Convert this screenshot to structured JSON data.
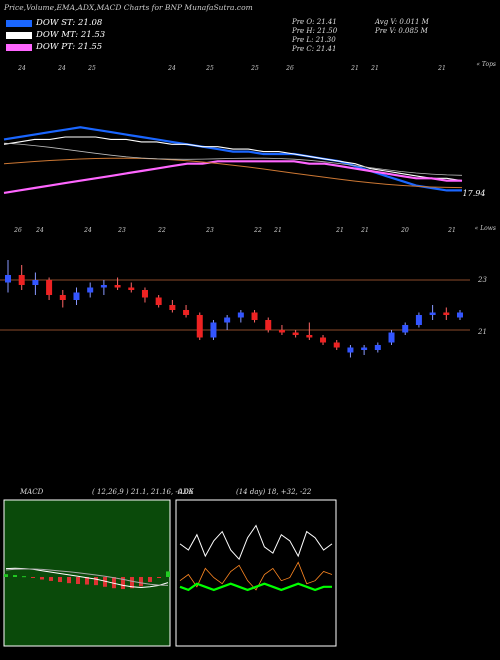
{
  "header": {
    "title": "Price,Volume,EMA,ADX,MACD Charts for BNP MunafaSutra.com",
    "legend": [
      {
        "label": "DOW ST: 21.08",
        "color": "#1a66ff"
      },
      {
        "label": "DOW MT: 21.53",
        "color": "#ffffff"
      },
      {
        "label": "DOW PT: 21.55",
        "color": "#ff66ff"
      }
    ],
    "stats_left": [
      "Pre   O: 21.41",
      "Pre   H: 21.50",
      "Pre   L: 21.30",
      "Pre   C: 21.41"
    ],
    "stats_right": [
      "Avg V: 0.011 M",
      "Pre   V: 0.085 M"
    ]
  },
  "colors": {
    "up": "#3355ff",
    "down": "#ee2222",
    "ema_st": "#1a66ff",
    "ema_pt": "#ff66ff",
    "ema_lt": "#cc7733",
    "macd_bg": "#0a4a0a",
    "adx_line": "#00ff00",
    "adx_di_minus": "#ff8822"
  },
  "chart_data": [
    {
      "type": "line",
      "title": "",
      "axis_label_top": "« Tops",
      "top_tick_labels": [
        "24",
        "24",
        "25",
        "24",
        "25",
        "25",
        "26",
        "21",
        "21",
        "21"
      ],
      "last_value_label": "17.94",
      "series": [
        {
          "name": "DOW ST",
          "values": [
            23.2,
            23.3,
            23.4,
            23.5,
            23.6,
            23.7,
            23.6,
            23.5,
            23.4,
            23.3,
            23.2,
            23.1,
            23.0,
            22.9,
            22.8,
            22.7,
            22.7,
            22.6,
            22.6,
            22.6,
            22.5,
            22.4,
            22.3,
            22.1,
            21.9,
            21.7,
            21.5,
            21.3,
            21.2,
            21.1,
            21.1
          ]
        },
        {
          "name": "DOW MT",
          "values": [
            23.0,
            23.1,
            23.2,
            23.2,
            23.3,
            23.3,
            23.3,
            23.2,
            23.2,
            23.1,
            23.1,
            23.0,
            23.0,
            22.9,
            22.9,
            22.8,
            22.8,
            22.7,
            22.7,
            22.6,
            22.5,
            22.4,
            22.3,
            22.2,
            22.0,
            21.9,
            21.8,
            21.7,
            21.6,
            21.6,
            21.5
          ]
        },
        {
          "name": "DOW PT",
          "values": [
            21.0,
            21.1,
            21.2,
            21.3,
            21.4,
            21.5,
            21.6,
            21.7,
            21.8,
            21.9,
            22.0,
            22.1,
            22.2,
            22.2,
            22.3,
            22.3,
            22.3,
            22.3,
            22.3,
            22.3,
            22.2,
            22.2,
            22.1,
            22.0,
            21.9,
            21.8,
            21.7,
            21.6,
            21.6,
            21.5,
            21.5
          ]
        }
      ]
    },
    {
      "type": "bar",
      "title": "",
      "axis_label_bottom": "« Lows",
      "tick_labels_top": [
        "26",
        "24",
        "24",
        "23",
        "22",
        "23",
        "22",
        "21",
        "21",
        "21",
        "20",
        "21"
      ],
      "y_labels": [
        "23",
        "21"
      ],
      "candles": [
        {
          "o": 22.9,
          "h": 23.8,
          "l": 22.5,
          "c": 23.2
        },
        {
          "o": 23.2,
          "h": 23.6,
          "l": 22.6,
          "c": 22.8
        },
        {
          "o": 22.8,
          "h": 23.3,
          "l": 22.4,
          "c": 23.0
        },
        {
          "o": 23.0,
          "h": 23.1,
          "l": 22.2,
          "c": 22.4
        },
        {
          "o": 22.4,
          "h": 22.6,
          "l": 21.9,
          "c": 22.2
        },
        {
          "o": 22.2,
          "h": 22.7,
          "l": 22.0,
          "c": 22.5
        },
        {
          "o": 22.5,
          "h": 22.9,
          "l": 22.3,
          "c": 22.7
        },
        {
          "o": 22.7,
          "h": 23.0,
          "l": 22.4,
          "c": 22.8
        },
        {
          "o": 22.8,
          "h": 23.1,
          "l": 22.6,
          "c": 22.7
        },
        {
          "o": 22.7,
          "h": 22.9,
          "l": 22.5,
          "c": 22.6
        },
        {
          "o": 22.6,
          "h": 22.7,
          "l": 22.1,
          "c": 22.3
        },
        {
          "o": 22.3,
          "h": 22.4,
          "l": 21.9,
          "c": 22.0
        },
        {
          "o": 22.0,
          "h": 22.2,
          "l": 21.7,
          "c": 21.8
        },
        {
          "o": 21.8,
          "h": 22.0,
          "l": 21.5,
          "c": 21.6
        },
        {
          "o": 21.6,
          "h": 21.7,
          "l": 20.6,
          "c": 20.7
        },
        {
          "o": 20.7,
          "h": 21.4,
          "l": 20.6,
          "c": 21.3
        },
        {
          "o": 21.3,
          "h": 21.6,
          "l": 21.0,
          "c": 21.5
        },
        {
          "o": 21.5,
          "h": 21.8,
          "l": 21.3,
          "c": 21.7
        },
        {
          "o": 21.7,
          "h": 21.8,
          "l": 21.3,
          "c": 21.4
        },
        {
          "o": 21.4,
          "h": 21.5,
          "l": 20.9,
          "c": 21.0
        },
        {
          "o": 21.0,
          "h": 21.2,
          "l": 20.8,
          "c": 20.9
        },
        {
          "o": 20.9,
          "h": 21.0,
          "l": 20.7,
          "c": 20.8
        },
        {
          "o": 20.8,
          "h": 21.3,
          "l": 20.6,
          "c": 20.7
        },
        {
          "o": 20.7,
          "h": 20.8,
          "l": 20.4,
          "c": 20.5
        },
        {
          "o": 20.5,
          "h": 20.6,
          "l": 20.2,
          "c": 20.3
        },
        {
          "o": 20.1,
          "h": 20.4,
          "l": 19.9,
          "c": 20.3
        },
        {
          "o": 20.2,
          "h": 20.4,
          "l": 20.0,
          "c": 20.3
        },
        {
          "o": 20.2,
          "h": 20.5,
          "l": 20.1,
          "c": 20.4
        },
        {
          "o": 20.5,
          "h": 21.0,
          "l": 20.4,
          "c": 20.9
        },
        {
          "o": 20.9,
          "h": 21.3,
          "l": 20.8,
          "c": 21.2
        },
        {
          "o": 21.2,
          "h": 21.7,
          "l": 21.1,
          "c": 21.6
        },
        {
          "o": 21.6,
          "h": 22.0,
          "l": 21.4,
          "c": 21.7
        },
        {
          "o": 21.7,
          "h": 21.9,
          "l": 21.4,
          "c": 21.6
        },
        {
          "o": 21.5,
          "h": 21.8,
          "l": 21.4,
          "c": 21.7
        }
      ]
    },
    {
      "type": "line",
      "title": "MACD",
      "params": "( 12,26,9 ) 21.1,  21.16,  -0.06",
      "series": [
        {
          "name": "MACD",
          "values": [
            0.6,
            0.62,
            0.6,
            0.55,
            0.45,
            0.35,
            0.25,
            0.15,
            0.05,
            -0.05,
            -0.15,
            -0.3,
            -0.45,
            -0.6,
            -0.7,
            -0.75,
            -0.7,
            -0.6,
            -0.4
          ]
        },
        {
          "name": "Signal",
          "values": [
            0.5,
            0.55,
            0.57,
            0.57,
            0.54,
            0.49,
            0.43,
            0.37,
            0.3,
            0.22,
            0.14,
            0.05,
            -0.05,
            -0.17,
            -0.3,
            -0.42,
            -0.52,
            -0.58,
            -0.6
          ]
        }
      ]
    },
    {
      "type": "line",
      "title": "ADX",
      "params": "(14 day) 18,  +32,  -22",
      "series": [
        {
          "name": "+DI",
          "values": [
            32,
            30,
            35,
            28,
            33,
            36,
            30,
            27,
            34,
            38,
            31,
            29,
            35,
            33,
            28,
            36,
            34,
            30,
            32
          ]
        },
        {
          "name": "-DI",
          "values": [
            20,
            22,
            18,
            24,
            21,
            19,
            23,
            25,
            20,
            17,
            22,
            24,
            20,
            21,
            26,
            19,
            20,
            23,
            22
          ]
        },
        {
          "name": "ADX",
          "values": [
            18,
            17,
            19,
            18,
            17,
            18,
            19,
            18,
            17,
            18,
            19,
            18,
            17,
            18,
            19,
            18,
            17,
            18,
            18
          ]
        }
      ]
    }
  ]
}
